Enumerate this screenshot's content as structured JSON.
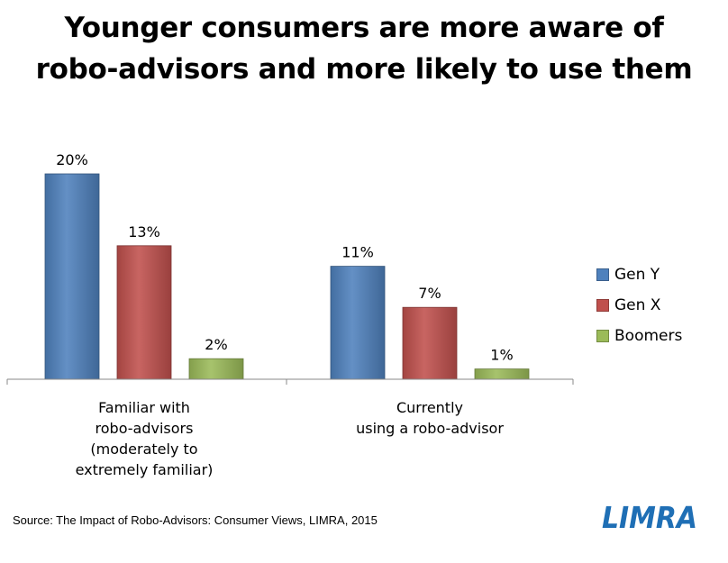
{
  "title_lines": [
    "Younger consumers are more aware of",
    "robo-advisors and more likely to use them"
  ],
  "source": "Source: The Impact of Robo-Advisors: Consumer Views, LIMRA, 2015",
  "logo_text": "LIMRA",
  "chart_data": {
    "type": "bar",
    "categories": [
      [
        "Familiar with",
        "robo-advisors",
        "(moderately to",
        "extremely familiar)"
      ],
      [
        "Currently",
        "using a robo-advisor"
      ]
    ],
    "series": [
      {
        "name": "Gen Y",
        "values": [
          20,
          11
        ],
        "labels": [
          "20%",
          "11%"
        ],
        "color": "#4f81bd"
      },
      {
        "name": "Gen X",
        "values": [
          13,
          7
        ],
        "labels": [
          "13%",
          "7%"
        ],
        "color": "#c0504d"
      },
      {
        "name": "Boomers",
        "values": [
          2,
          1
        ],
        "labels": [
          "2%",
          "1%"
        ],
        "color": "#9bbb59"
      }
    ],
    "ylim": [
      0,
      20
    ],
    "grid": false,
    "legend_position": "right"
  }
}
